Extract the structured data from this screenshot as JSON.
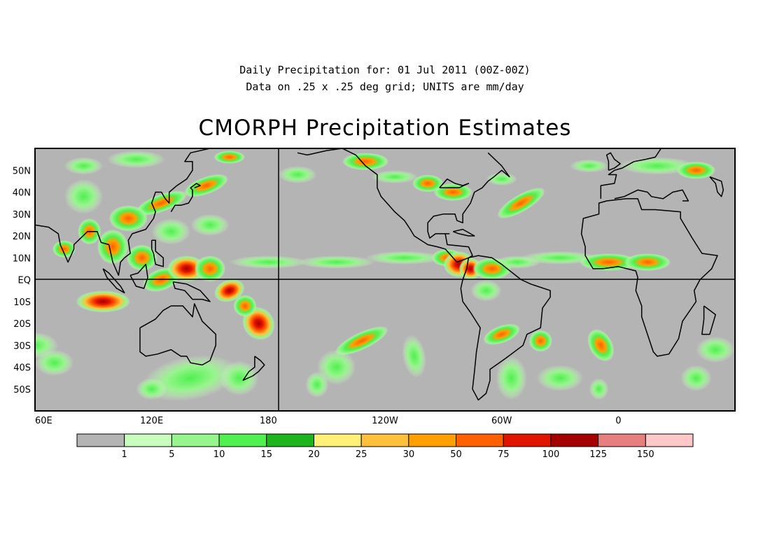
{
  "header": {
    "line1": "Daily Precipitation for: 01 Jul 2011 (00Z-00Z)",
    "line2": "Data on .25 x .25 deg grid; UNITS are mm/day",
    "title": "CMORPH Precipitation Estimates"
  },
  "map": {
    "lon_range": [
      60,
      420
    ],
    "lat_range": [
      -60,
      60
    ],
    "lat_labels": [
      {
        "lat": 50,
        "text": "50N"
      },
      {
        "lat": 40,
        "text": "40N"
      },
      {
        "lat": 30,
        "text": "30N"
      },
      {
        "lat": 20,
        "text": "20N"
      },
      {
        "lat": 10,
        "text": "10N"
      },
      {
        "lat": 0,
        "text": "EQ"
      },
      {
        "lat": -10,
        "text": "10S"
      },
      {
        "lat": -20,
        "text": "20S"
      },
      {
        "lat": -30,
        "text": "30S"
      },
      {
        "lat": -40,
        "text": "40S"
      },
      {
        "lat": -50,
        "text": "50S"
      }
    ],
    "lon_labels": [
      {
        "lon": 60,
        "text": "60E"
      },
      {
        "lon": 120,
        "text": "120E"
      },
      {
        "lon": 180,
        "text": "180"
      },
      {
        "lon": 240,
        "text": "120W"
      },
      {
        "lon": 300,
        "text": "60W"
      },
      {
        "lon": 360,
        "text": "0"
      }
    ],
    "reference_lines": {
      "equator_lat": 0,
      "dateline_lon": 180
    },
    "colors": {
      "no_data": "#b4b4b4",
      "coastline": "#000000"
    }
  },
  "colorbar": {
    "units": "mm/day",
    "thresholds": [
      "1",
      "5",
      "10",
      "15",
      "20",
      "25",
      "30",
      "50",
      "75",
      "100",
      "125",
      "150"
    ],
    "colors": [
      "#b4b4b4",
      "#c8ffbe",
      "#96f58c",
      "#50f050",
      "#1eb41e",
      "#fff078",
      "#ffc03c",
      "#ffa000",
      "#ff6000",
      "#e11400",
      "#a50000",
      "#e87f7f",
      "#ffc8c8"
    ]
  }
}
